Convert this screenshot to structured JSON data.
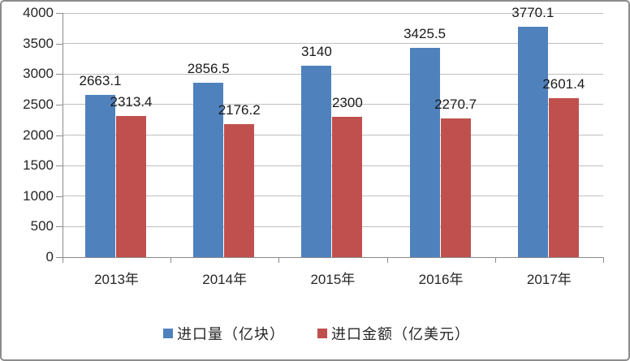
{
  "chart_data": {
    "type": "bar",
    "title": "",
    "xlabel": "",
    "ylabel": "",
    "categories": [
      "2013年",
      "2014年",
      "2015年",
      "2016年",
      "2017年"
    ],
    "series": [
      {
        "name": "进口量（亿块）",
        "color": "#4f81bd",
        "values": [
          2663.1,
          2856.5,
          3140,
          3425.5,
          3770.1
        ]
      },
      {
        "name": "进口金额（亿美元）",
        "color": "#c0504d",
        "values": [
          2313.4,
          2176.2,
          2300,
          2270.7,
          2601.4
        ]
      }
    ],
    "data_labels": [
      [
        "2663.1",
        "2856.5",
        "3140",
        "3425.5",
        "3770.1"
      ],
      [
        "2313.4",
        "2176.2",
        "2300",
        "2270.7",
        "2601.4"
      ]
    ],
    "ylim": [
      0,
      4000
    ],
    "yticks": [
      0,
      500,
      1000,
      1500,
      2000,
      2500,
      3000,
      3500,
      4000
    ],
    "grid": true,
    "legend_position": "bottom"
  },
  "legend": {
    "items": [
      {
        "label": "进口量（亿块）",
        "color": "#4f81bd"
      },
      {
        "label": "进口金额（亿美元）",
        "color": "#c0504d"
      }
    ]
  },
  "colors": {
    "series1": "#4f81bd",
    "series2": "#c0504d",
    "gridline": "#bfbfbf",
    "axis": "#8c8c8c",
    "border": "#8c8c8c",
    "text": "#262626",
    "background": "#ffffff"
  }
}
